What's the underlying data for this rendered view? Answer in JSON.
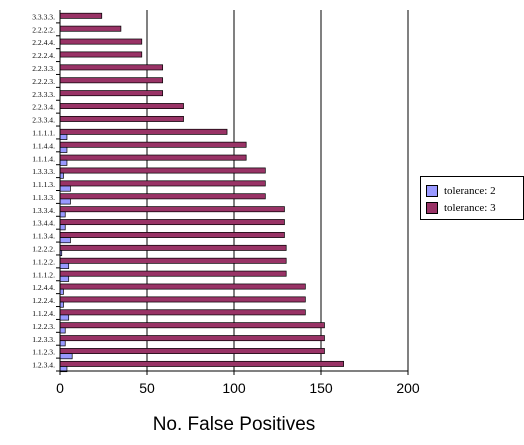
{
  "chart_data": {
    "type": "bar",
    "orientation": "horizontal",
    "title": "",
    "xlabel": "No. False Positives",
    "ylabel": "",
    "xlim": [
      0,
      200
    ],
    "xticks": [
      "0",
      "50",
      "100",
      "150",
      "200"
    ],
    "grid": "vertical",
    "legend_position": "right",
    "categories": [
      "3.3.3.3.",
      "2.2.2.2.",
      "2.2.4.4.",
      "2.2.2.4.",
      "2.2.3.3.",
      "2.2.2.3.",
      "2.3.3.3.",
      "2.2.3.4.",
      "2.3.3.4.",
      "1.1.1.1.",
      "1.1.4.4.",
      "1.1.1.4.",
      "1.3.3.3.",
      "1.1.1.3.",
      "1.1.3.3.",
      "1.3.3.4.",
      "1.3.4.4.",
      "1.1.3.4.",
      "1.2.2.2.",
      "1.1.2.2.",
      "1.1.1.2.",
      "1.2.4.4.",
      "1.2.2.4.",
      "1.1.2.4.",
      "1.2.2.3.",
      "1.2.3.3.",
      "1.1.2.3.",
      "1.2.3.4."
    ],
    "series": [
      {
        "name": "tolerance: 2",
        "color": "#9999ff",
        "values": [
          0,
          0,
          0,
          0,
          0,
          0,
          0,
          0,
          0,
          4,
          4,
          4,
          2,
          6,
          6,
          3,
          3,
          6,
          1,
          5,
          5,
          2,
          2,
          5,
          3,
          3,
          7,
          4
        ]
      },
      {
        "name": "tolerance: 3",
        "color": "#993366",
        "values": [
          24,
          35,
          47,
          47,
          59,
          59,
          59,
          71,
          71,
          96,
          107,
          107,
          118,
          118,
          118,
          129,
          129,
          129,
          130,
          130,
          130,
          141,
          141,
          141,
          152,
          152,
          152,
          163
        ]
      }
    ]
  }
}
